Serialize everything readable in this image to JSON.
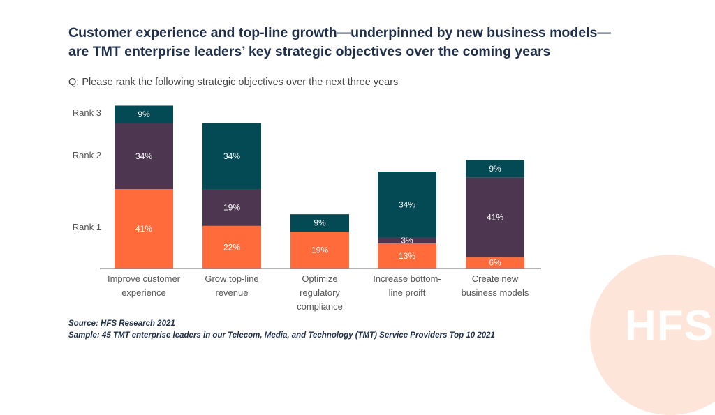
{
  "title_lines": [
    "Customer experience and top-line growth—underpinned by new business models—",
    "are TMT enterprise leaders’ key strategic objectives over the coming years"
  ],
  "question": "Q:  Please rank the following strategic objectives over the next three years",
  "source": "Source: HFS Research 2021",
  "sample": "Sample: 45 TMT enterprise leaders in our Telecom, Media, and Technology (TMT) Service Providers Top 10 2021",
  "logo": "HFS",
  "chart_data": {
    "type": "bar",
    "stacked": true,
    "categories": [
      [
        "Improve customer",
        "experience"
      ],
      [
        "Grow top-line",
        "revenue"
      ],
      [
        "Optimize",
        "regulatory",
        "compliance"
      ],
      [
        "Increase bottom-",
        "line proift"
      ],
      [
        "Create new",
        "business models"
      ]
    ],
    "series": [
      {
        "name": "Rank 1",
        "color": "#ff6b3a",
        "values": [
          41,
          22,
          19,
          13,
          6
        ]
      },
      {
        "name": "Rank 2",
        "color": "#4d3650",
        "values": [
          34,
          19,
          0,
          3,
          41
        ]
      },
      {
        "name": "Rank 3",
        "color": "#034a55",
        "values": [
          9,
          34,
          9,
          34,
          9
        ]
      }
    ],
    "unit": "%",
    "ylim": [
      0,
      84
    ],
    "grid": false
  }
}
